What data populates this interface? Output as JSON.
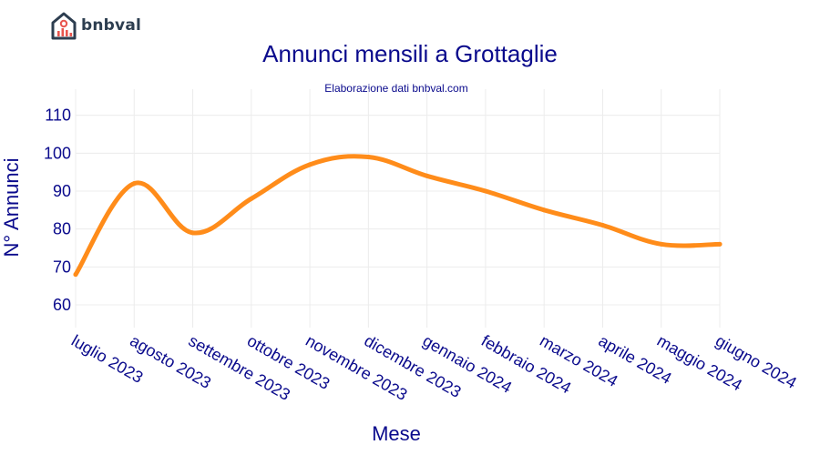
{
  "brand": {
    "name": "bnbval",
    "icon": "house-chart-icon",
    "color": "#2d3e50",
    "accent": "#e8554e"
  },
  "chart_data": {
    "type": "line",
    "title": "Annunci mensili a Grottaglie",
    "subtitle": "Elaborazione dati bnbval.com",
    "xlabel": "Mese",
    "ylabel": "N° Annunci",
    "categories": [
      "luglio 2023",
      "agosto 2023",
      "settembre 2023",
      "ottobre 2023",
      "novembre 2023",
      "dicembre 2023",
      "gennaio 2024",
      "febbraio 2024",
      "marzo 2024",
      "aprile 2024",
      "maggio 2024",
      "giugno 2024"
    ],
    "values": [
      68,
      92,
      79,
      88,
      97,
      99,
      94,
      90,
      85,
      81,
      76,
      76
    ],
    "ylim": [
      54,
      114
    ],
    "yticks": [
      60,
      70,
      80,
      90,
      100,
      110
    ],
    "grid": true,
    "line_color": "#ff8c1a"
  }
}
